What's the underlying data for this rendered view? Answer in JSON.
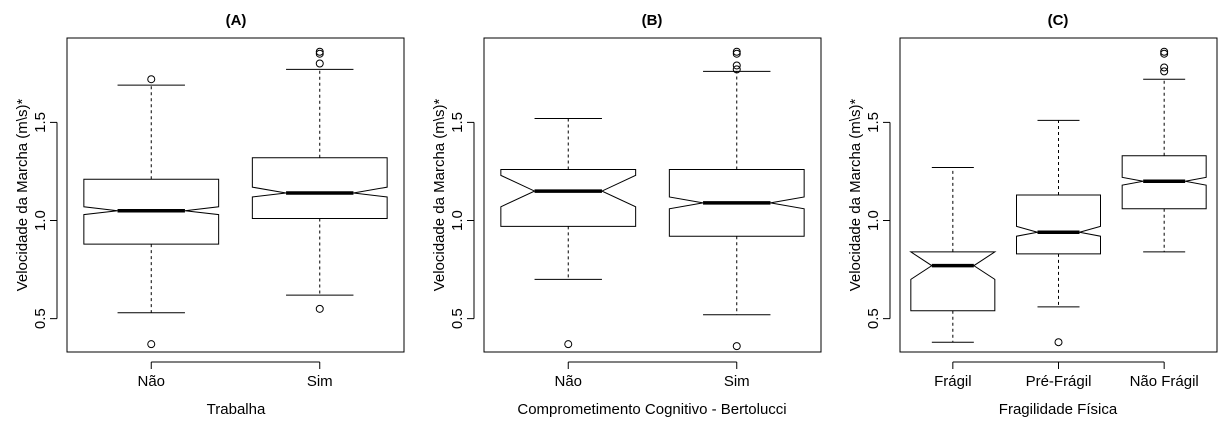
{
  "chart_data": [
    {
      "type": "boxplot",
      "title": "(A)",
      "xlabel": "Trabalha",
      "ylabel": "Velocidade da Marcha (m\\s)*",
      "ylim": [
        0.33,
        1.93
      ],
      "yticks": [
        0.5,
        1.0,
        1.5
      ],
      "ytick_labels": [
        "0.5",
        "1.0",
        "1.5"
      ],
      "notched": true,
      "categories": [
        "Não",
        "Sim"
      ],
      "boxes": [
        {
          "category": "Não",
          "whisker_low": 0.53,
          "q1": 0.88,
          "notch_low": 1.03,
          "median": 1.05,
          "notch_high": 1.07,
          "q3": 1.21,
          "whisker_high": 1.69,
          "outliers": [
            0.37,
            1.72
          ]
        },
        {
          "category": "Sim",
          "whisker_low": 0.62,
          "q1": 1.01,
          "notch_low": 1.12,
          "median": 1.14,
          "notch_high": 1.17,
          "q3": 1.32,
          "whisker_high": 1.77,
          "outliers": [
            0.55,
            1.8,
            1.85,
            1.86
          ]
        }
      ]
    },
    {
      "type": "boxplot",
      "title": "(B)",
      "xlabel": "Comprometimento Cognitivo - Bertolucci",
      "ylabel": "Velocidade da Marcha (m\\s)*",
      "ylim": [
        0.33,
        1.93
      ],
      "yticks": [
        0.5,
        1.0,
        1.5
      ],
      "ytick_labels": [
        "0.5",
        "1.0",
        "1.5"
      ],
      "notched": true,
      "categories": [
        "Não",
        "Sim"
      ],
      "boxes": [
        {
          "category": "Não",
          "whisker_low": 0.7,
          "q1": 0.97,
          "notch_low": 1.07,
          "median": 1.15,
          "notch_high": 1.23,
          "q3": 1.26,
          "whisker_high": 1.52,
          "outliers": [
            0.37
          ]
        },
        {
          "category": "Sim",
          "whisker_low": 0.52,
          "q1": 0.92,
          "notch_low": 1.06,
          "median": 1.09,
          "notch_high": 1.12,
          "q3": 1.26,
          "whisker_high": 1.76,
          "outliers": [
            0.36,
            1.77,
            1.79,
            1.85,
            1.86
          ]
        }
      ]
    },
    {
      "type": "boxplot",
      "title": "(C)",
      "xlabel": "Fragilidade Física",
      "ylabel": "Velocidade da Marcha (m\\s)*",
      "ylim": [
        0.33,
        1.93
      ],
      "yticks": [
        0.5,
        1.0,
        1.5
      ],
      "ytick_labels": [
        "0.5",
        "1.0",
        "1.5"
      ],
      "notched": true,
      "categories": [
        "Frágil",
        "Pré-Frágil",
        "Não Frágil"
      ],
      "boxes": [
        {
          "category": "Frágil",
          "whisker_low": 0.38,
          "q1": 0.54,
          "notch_low": 0.7,
          "median": 0.77,
          "notch_high": 0.84,
          "q3": 0.84,
          "whisker_high": 1.27,
          "outliers": []
        },
        {
          "category": "Pré-Frágil",
          "whisker_low": 0.56,
          "q1": 0.83,
          "notch_low": 0.92,
          "median": 0.94,
          "notch_high": 0.97,
          "q3": 1.13,
          "whisker_high": 1.51,
          "outliers": [
            0.38
          ]
        },
        {
          "category": "Não Frágil",
          "whisker_low": 0.84,
          "q1": 1.06,
          "notch_low": 1.18,
          "median": 1.2,
          "notch_high": 1.22,
          "q3": 1.33,
          "whisker_high": 1.72,
          "outliers": [
            1.76,
            1.78,
            1.85,
            1.86
          ]
        }
      ]
    }
  ]
}
